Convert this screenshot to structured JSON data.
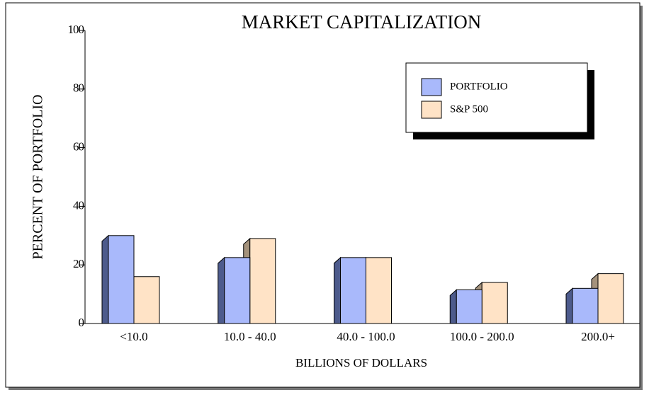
{
  "chart_data": {
    "type": "bar",
    "title": "MARKET  CAPITALIZATION",
    "x_label": "BILLIONS OF DOLLARS",
    "y_label": "PERCENT OF PORTFOLIO",
    "categories": [
      "<10.0",
      "10.0 - 40.0",
      "40.0 - 100.0",
      "100.0 - 200.0",
      "200.0+"
    ],
    "series": [
      {
        "name": "PORTFOLIO",
        "color": "#a9b9fb",
        "values": [
          30,
          22.5,
          22.5,
          11.5,
          12
        ]
      },
      {
        "name": "S&P 500",
        "color": "#ffe3c6",
        "values": [
          16,
          29,
          22.5,
          14,
          17
        ]
      }
    ],
    "ylim": [
      0,
      100
    ],
    "yticks": [
      0,
      20,
      40,
      60,
      80,
      100
    ],
    "legend": "upper right"
  }
}
